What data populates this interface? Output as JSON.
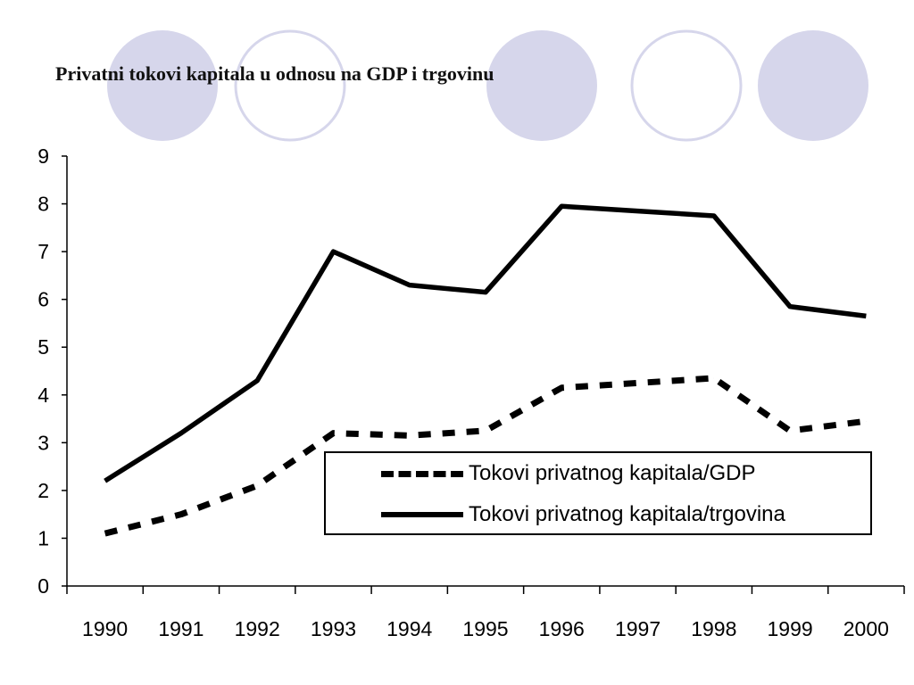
{
  "title": "Privatni tokovi kapitala u odnosu na GDP i trgovinu",
  "decor_colors": {
    "filled": "#d6d6eb",
    "outline": "#d6d6eb"
  },
  "chart_data": {
    "type": "line",
    "x": [
      "1990",
      "1991",
      "1992",
      "1993",
      "1994",
      "1995",
      "1996",
      "1997",
      "1998",
      "1999",
      "2000"
    ],
    "ylim": [
      0,
      9
    ],
    "yticks": [
      "0",
      "1",
      "2",
      "3",
      "4",
      "5",
      "6",
      "7",
      "8",
      "9"
    ],
    "grid": false,
    "legend_position": "bottom-right",
    "series": [
      {
        "name": "Tokovi privatnog kapitala/GDP",
        "style": "dashed",
        "color": "#000000",
        "values": [
          1.1,
          1.5,
          2.1,
          3.2,
          3.15,
          3.25,
          4.15,
          4.25,
          4.35,
          3.25,
          3.45
        ]
      },
      {
        "name": "Tokovi privatnog kapitala/trgovina",
        "style": "solid",
        "color": "#000000",
        "values": [
          2.2,
          3.2,
          4.3,
          7.0,
          6.3,
          6.15,
          7.95,
          7.85,
          7.75,
          5.85,
          5.65
        ]
      }
    ]
  }
}
